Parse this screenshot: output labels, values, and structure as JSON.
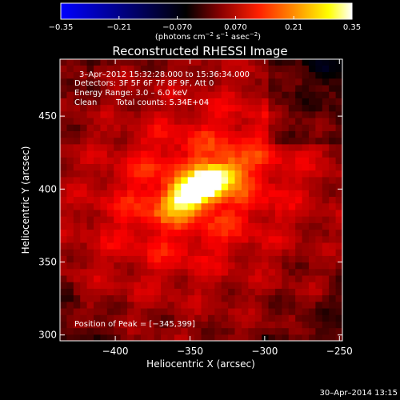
{
  "chart_data": {
    "type": "heatmap",
    "title": "Reconstructed RHESSI Image",
    "xlabel": "Heliocentric X (arcsec)",
    "ylabel": "Heliocentric Y (arcsec)",
    "xlim": [
      -437,
      -248
    ],
    "ylim": [
      296,
      489
    ],
    "x_ticks": [
      -400,
      -350,
      -300,
      -250
    ],
    "y_ticks": [
      300,
      350,
      400,
      450
    ],
    "x_tick_labels": [
      "−400",
      "−350",
      "−300",
      "−250"
    ],
    "y_tick_labels": [
      "300",
      "350",
      "400",
      "450"
    ],
    "peak": [
      -345,
      399
    ],
    "colorbar": {
      "range": [
        -0.35,
        0.35
      ],
      "ticks": [
        -0.35,
        -0.21,
        -0.07,
        0.07,
        0.21,
        0.35
      ],
      "tick_labels": [
        "−0.35",
        "−0.21",
        "−0.070",
        "0.070",
        "0.21",
        "0.35"
      ],
      "unit_main": "(photons cm",
      "unit_exp1": "−2",
      "unit_mid": " s",
      "unit_exp2": "−1",
      "unit_tail": " asec",
      "unit_exp3": "−2",
      "unit_close": ")",
      "colors": [
        "#0000ff",
        "#000000",
        "#8b0000",
        "#ff0000",
        "#ff8c00",
        "#ffff00",
        "#ffffff"
      ]
    },
    "annotations": {
      "time_range": "3–Apr–2012 15:32:28.000 to 15:36:34.000",
      "detectors": "Detectors: 3F 5F 6F 7F 8F 9F, Att 0",
      "energy": "Energy Range: 3.0 – 6.0 keV",
      "clean": "Clean",
      "counts": "Total counts: 5.34E+04",
      "peak_position": "Position of Peak = [−345,399]"
    }
  },
  "footer": {
    "timestamp": "30–Apr–2014 13:15"
  }
}
